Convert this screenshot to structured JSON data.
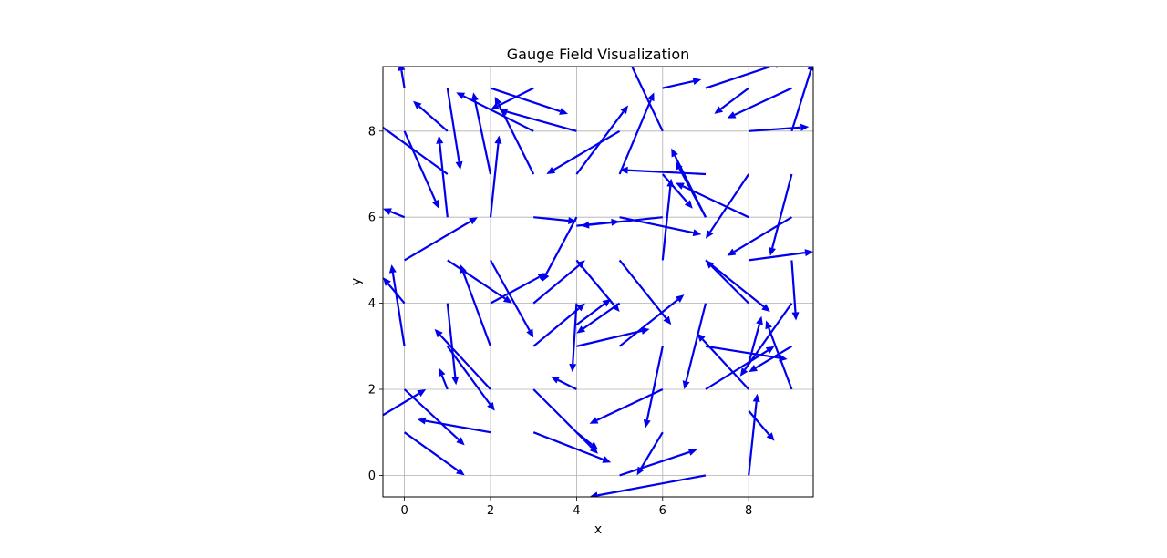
{
  "chart_data": {
    "type": "quiver",
    "title": "Gauge Field Visualization",
    "xlabel": "x",
    "ylabel": "y",
    "xlim": [
      -0.5,
      9.5
    ],
    "ylim": [
      -0.5,
      9.5
    ],
    "xticks": [
      "0",
      "2",
      "4",
      "6",
      "8"
    ],
    "yticks": [
      "0",
      "2",
      "4",
      "6",
      "8"
    ],
    "grid": true,
    "arrow_color": "#0000ee",
    "arrows": [
      {
        "x": 0.0,
        "y": 1.0,
        "u": 1.4,
        "v": -1.0,
        "label": ""
      },
      {
        "x": 0.0,
        "y": 2.0,
        "u": 1.4,
        "v": -1.3,
        "label": ""
      },
      {
        "x": -0.5,
        "y": 1.4,
        "u": 1.0,
        "v": 0.6,
        "label": ""
      },
      {
        "x": 2.0,
        "y": 1.0,
        "u": -1.7,
        "v": 0.3,
        "label": ""
      },
      {
        "x": 1.0,
        "y": 2.0,
        "u": -0.2,
        "v": 0.5,
        "label": ""
      },
      {
        "x": 3.0,
        "y": 1.0,
        "u": 1.8,
        "v": -0.7,
        "label": ""
      },
      {
        "x": 3.0,
        "y": 2.0,
        "u": 1.5,
        "v": -1.5,
        "label": ""
      },
      {
        "x": 4.0,
        "y": 2.0,
        "u": -0.6,
        "v": 0.3,
        "label": ""
      },
      {
        "x": 4.0,
        "y": 1.0,
        "u": 0.5,
        "v": -0.4,
        "label": ""
      },
      {
        "x": 5.0,
        "y": 0.0,
        "u": 1.8,
        "v": 0.6,
        "label": ""
      },
      {
        "x": 6.0,
        "y": 1.0,
        "u": -0.6,
        "v": -1.0,
        "label": ""
      },
      {
        "x": 6.0,
        "y": 2.0,
        "u": -1.7,
        "v": -0.8,
        "label": ""
      },
      {
        "x": 6.0,
        "y": 3.0,
        "u": -0.4,
        "v": -1.9,
        "label": ""
      },
      {
        "x": 7.0,
        "y": 0.0,
        "u": -2.7,
        "v": -0.5,
        "label": ""
      },
      {
        "x": 7.0,
        "y": 2.0,
        "u": 1.6,
        "v": 1.0,
        "label": ""
      },
      {
        "x": 8.0,
        "y": 2.0,
        "u": -1.2,
        "v": 1.3,
        "label": ""
      },
      {
        "x": 8.0,
        "y": 0.0,
        "u": 0.2,
        "v": 1.9,
        "label": ""
      },
      {
        "x": 8.0,
        "y": 1.5,
        "u": 0.6,
        "v": -0.7,
        "label": ""
      },
      {
        "x": 9.0,
        "y": 2.0,
        "u": -0.6,
        "v": 1.6,
        "label": ""
      },
      {
        "x": 9.0,
        "y": 3.0,
        "u": -1.0,
        "v": -0.6,
        "label": ""
      },
      {
        "x": 8.0,
        "y": 2.6,
        "u": 0.3,
        "v": 1.1,
        "label": ""
      },
      {
        "x": 7.0,
        "y": 3.0,
        "u": 1.9,
        "v": -0.3,
        "label": ""
      },
      {
        "x": 7.0,
        "y": 4.0,
        "u": -0.5,
        "v": -2.0,
        "label": ""
      },
      {
        "x": 5.0,
        "y": 3.0,
        "u": 1.5,
        "v": 1.2,
        "label": ""
      },
      {
        "x": 4.0,
        "y": 3.0,
        "u": 1.7,
        "v": 0.4,
        "label": ""
      },
      {
        "x": 4.0,
        "y": 4.0,
        "u": -0.1,
        "v": -1.6,
        "label": ""
      },
      {
        "x": 4.0,
        "y": 3.5,
        "u": 0.8,
        "v": 0.6,
        "label": ""
      },
      {
        "x": 3.0,
        "y": 3.0,
        "u": 1.2,
        "v": 1.0,
        "label": ""
      },
      {
        "x": 5.0,
        "y": 4.0,
        "u": -1.0,
        "v": -0.7,
        "label": ""
      },
      {
        "x": 5.0,
        "y": 5.0,
        "u": 1.2,
        "v": -1.5,
        "label": ""
      },
      {
        "x": 4.0,
        "y": 5.0,
        "u": 1.0,
        "v": -1.2,
        "label": ""
      },
      {
        "x": 3.0,
        "y": 4.0,
        "u": 1.2,
        "v": 1.0,
        "label": ""
      },
      {
        "x": 2.0,
        "y": 5.0,
        "u": 1.0,
        "v": -1.8,
        "label": ""
      },
      {
        "x": 2.0,
        "y": 4.0,
        "u": 1.3,
        "v": 0.7,
        "label": ""
      },
      {
        "x": 1.0,
        "y": 5.0,
        "u": 1.5,
        "v": -1.0,
        "label": ""
      },
      {
        "x": 2.0,
        "y": 3.0,
        "u": -0.7,
        "v": 1.9,
        "label": ""
      },
      {
        "x": 1.0,
        "y": 4.0,
        "u": 0.2,
        "v": -1.9,
        "label": ""
      },
      {
        "x": 2.0,
        "y": 2.0,
        "u": -1.3,
        "v": 1.4,
        "label": ""
      },
      {
        "x": 1.0,
        "y": 3.0,
        "u": 1.1,
        "v": -1.5,
        "label": ""
      },
      {
        "x": 0.0,
        "y": 3.0,
        "u": -0.3,
        "v": 1.9,
        "label": ""
      },
      {
        "x": 0.0,
        "y": 4.0,
        "u": -0.5,
        "v": 0.6,
        "label": ""
      },
      {
        "x": 0.0,
        "y": 5.0,
        "u": 1.7,
        "v": 1.0,
        "label": ""
      },
      {
        "x": 0.0,
        "y": 6.0,
        "u": -0.5,
        "v": 0.2,
        "label": ""
      },
      {
        "x": 1.0,
        "y": 6.0,
        "u": -0.2,
        "v": 1.9,
        "label": ""
      },
      {
        "x": 2.0,
        "y": 6.0,
        "u": 0.2,
        "v": 1.9,
        "label": ""
      },
      {
        "x": 3.0,
        "y": 6.0,
        "u": 1.0,
        "v": -0.1,
        "label": ""
      },
      {
        "x": 4.0,
        "y": 6.0,
        "u": -0.8,
        "v": -1.5,
        "label": ""
      },
      {
        "x": 4.0,
        "y": 5.8,
        "u": 1.0,
        "v": 0.1,
        "label": ""
      },
      {
        "x": 5.0,
        "y": 6.0,
        "u": 1.9,
        "v": -0.4,
        "label": ""
      },
      {
        "x": 6.0,
        "y": 6.0,
        "u": -1.9,
        "v": -0.2,
        "label": ""
      },
      {
        "x": 6.0,
        "y": 5.0,
        "u": 0.2,
        "v": 1.9,
        "label": ""
      },
      {
        "x": 7.0,
        "y": 6.0,
        "u": -0.7,
        "v": 1.3,
        "label": ""
      },
      {
        "x": 8.0,
        "y": 7.0,
        "u": -1.0,
        "v": -1.5,
        "label": ""
      },
      {
        "x": 8.0,
        "y": 6.0,
        "u": -1.7,
        "v": 0.8,
        "label": ""
      },
      {
        "x": 9.0,
        "y": 6.0,
        "u": -1.5,
        "v": -0.9,
        "label": ""
      },
      {
        "x": 9.0,
        "y": 7.0,
        "u": -0.5,
        "v": -1.9,
        "label": ""
      },
      {
        "x": 8.0,
        "y": 5.0,
        "u": 1.5,
        "v": 0.2,
        "label": ""
      },
      {
        "x": 7.0,
        "y": 5.0,
        "u": 1.5,
        "v": -1.2,
        "label": ""
      },
      {
        "x": 9.0,
        "y": 5.0,
        "u": 0.1,
        "v": -1.4,
        "label": ""
      },
      {
        "x": 9.0,
        "y": 4.0,
        "u": -1.2,
        "v": -1.7,
        "label": ""
      },
      {
        "x": 8.0,
        "y": 4.0,
        "u": -1.0,
        "v": 1.0,
        "label": ""
      },
      {
        "x": 7.0,
        "y": 7.0,
        "u": -2.0,
        "v": 0.1,
        "label": ""
      },
      {
        "x": 6.0,
        "y": 7.0,
        "u": 0.7,
        "v": -0.8,
        "label": ""
      },
      {
        "x": 7.0,
        "y": 6.0,
        "u": -0.8,
        "v": 1.6,
        "label": ""
      },
      {
        "x": 6.0,
        "y": 8.0,
        "u": -0.9,
        "v": 1.9,
        "label": ""
      },
      {
        "x": 5.0,
        "y": 8.0,
        "u": -1.7,
        "v": -1.0,
        "label": ""
      },
      {
        "x": 4.0,
        "y": 7.0,
        "u": 1.2,
        "v": 1.6,
        "label": ""
      },
      {
        "x": 3.0,
        "y": 7.0,
        "u": -0.9,
        "v": 1.8,
        "label": ""
      },
      {
        "x": 3.0,
        "y": 8.0,
        "u": -1.8,
        "v": 0.9,
        "label": ""
      },
      {
        "x": 2.0,
        "y": 7.0,
        "u": -0.4,
        "v": 1.9,
        "label": ""
      },
      {
        "x": 2.0,
        "y": 9.0,
        "u": 1.8,
        "v": -0.6,
        "label": ""
      },
      {
        "x": 3.0,
        "y": 9.0,
        "u": -1.0,
        "v": -0.5,
        "label": ""
      },
      {
        "x": 4.0,
        "y": 8.0,
        "u": -1.8,
        "v": 0.5,
        "label": ""
      },
      {
        "x": 1.0,
        "y": 9.0,
        "u": 0.3,
        "v": -1.9,
        "label": ""
      },
      {
        "x": 1.0,
        "y": 7.0,
        "u": -1.8,
        "v": 1.3,
        "label": ""
      },
      {
        "x": 0.0,
        "y": 8.0,
        "u": 0.8,
        "v": -1.8,
        "label": ""
      },
      {
        "x": 0.0,
        "y": 9.0,
        "u": -0.1,
        "v": 0.6,
        "label": ""
      },
      {
        "x": 1.0,
        "y": 8.0,
        "u": -0.8,
        "v": 0.7,
        "label": ""
      },
      {
        "x": 5.0,
        "y": 7.0,
        "u": 0.8,
        "v": 1.9,
        "label": ""
      },
      {
        "x": 6.0,
        "y": 9.0,
        "u": 0.9,
        "v": 0.2,
        "label": ""
      },
      {
        "x": 7.0,
        "y": 9.0,
        "u": 1.8,
        "v": 0.6,
        "label": ""
      },
      {
        "x": 8.0,
        "y": 9.0,
        "u": -0.8,
        "v": -0.6,
        "label": ""
      },
      {
        "x": 9.0,
        "y": 9.0,
        "u": -1.5,
        "v": -0.7,
        "label": ""
      },
      {
        "x": 8.0,
        "y": 8.0,
        "u": 1.4,
        "v": 0.1,
        "label": ""
      },
      {
        "x": 9.0,
        "y": 8.0,
        "u": 0.5,
        "v": 1.6,
        "label": ""
      }
    ]
  }
}
